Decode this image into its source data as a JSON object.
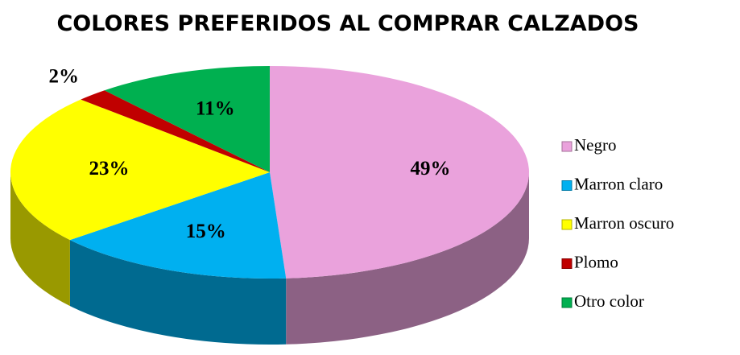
{
  "chart_data": {
    "type": "pie",
    "title": "COLORES PREFERIDOS AL COMPRAR CALZADOS",
    "categories": [
      "Negro",
      "Marron claro",
      "Marron oscuro",
      "Plomo",
      "Otro color"
    ],
    "values": [
      49,
      15,
      23,
      2,
      11
    ],
    "value_labels": [
      "49%",
      "15%",
      "23%",
      "2%",
      "11%"
    ],
    "colors": [
      "#eaa2dc",
      "#00b0f0",
      "#ffff00",
      "#c00000",
      "#00b050"
    ],
    "legend": "right"
  }
}
